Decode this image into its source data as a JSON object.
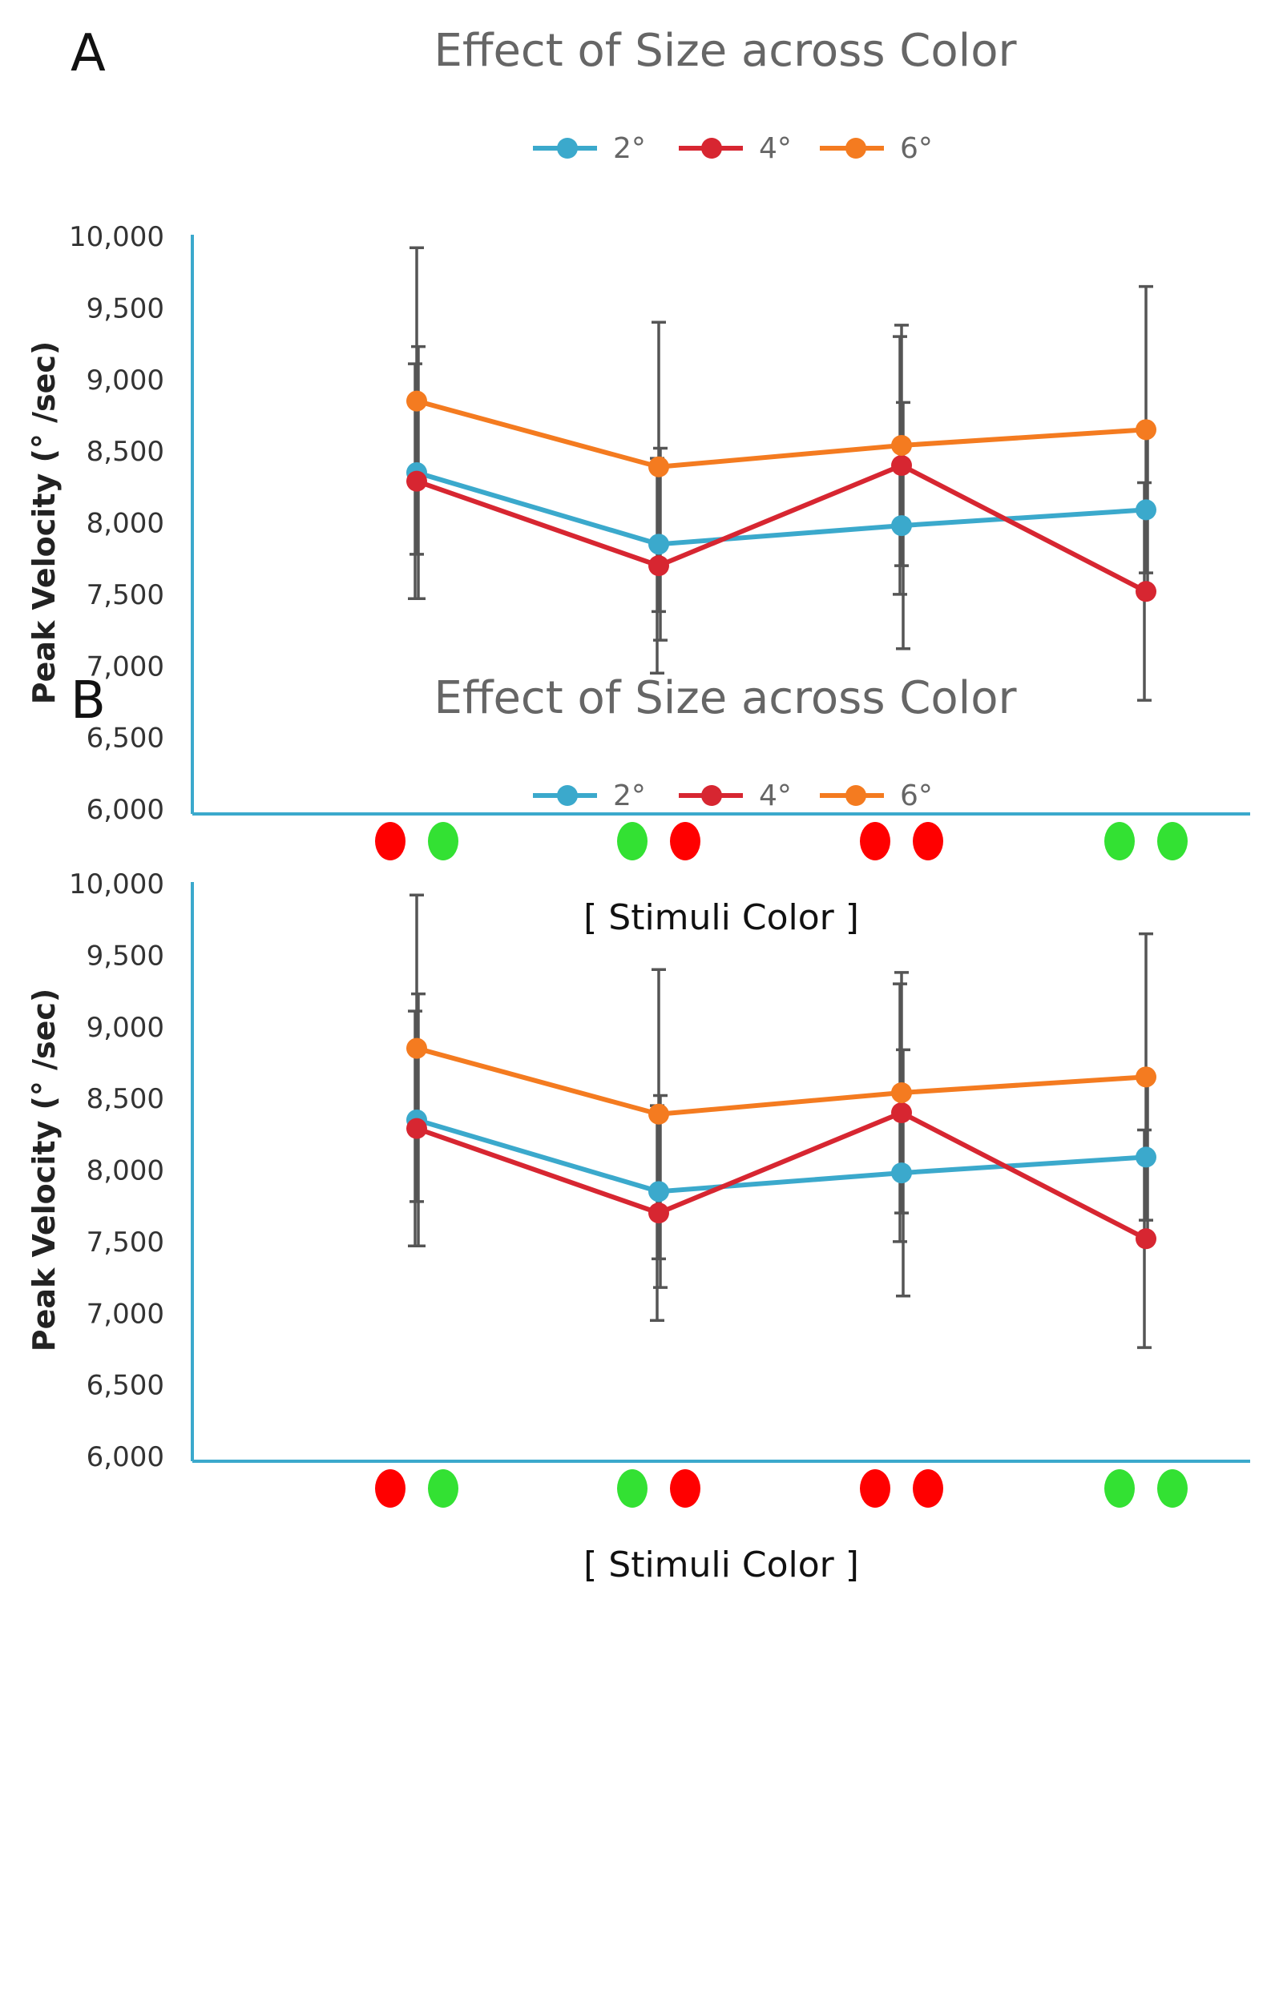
{
  "chart_data": [
    {
      "panel_label": "A",
      "type": "line",
      "title": "Effect of Size across Color",
      "xlabel": "[ Stimuli Color ]",
      "ylabel": "Peak Velocity (° /sec)",
      "ylim": [
        6000,
        10000
      ],
      "yticks": [
        6000,
        6500,
        7000,
        7500,
        8000,
        8500,
        9000,
        9500,
        10000
      ],
      "ytick_labels": [
        "6,000",
        "6,500",
        "7,000",
        "7,500",
        "8,000",
        "8,500",
        "9,000",
        "9,500",
        "10,000"
      ],
      "grid": false,
      "legend_position": "top-center",
      "categories": [
        {
          "name": "red-green",
          "dots": [
            "red",
            "green"
          ]
        },
        {
          "name": "green-red",
          "dots": [
            "green",
            "red"
          ]
        },
        {
          "name": "red-red",
          "dots": [
            "red",
            "red"
          ]
        },
        {
          "name": "green-green",
          "dots": [
            "green",
            "green"
          ]
        }
      ],
      "series": [
        {
          "name": "2°",
          "color": "#3BA9CC",
          "values": [
            8350,
            7850,
            7980,
            8090
          ],
          "error": [
            880,
            670,
            860,
            560
          ]
        },
        {
          "name": "4°",
          "color": "#D72631",
          "values": [
            8290,
            7700,
            8400,
            7520
          ],
          "error": [
            820,
            750,
            900,
            760
          ]
        },
        {
          "name": "6°",
          "color": "#F47B20",
          "values": [
            8850,
            8390,
            8540,
            8650
          ],
          "error": [
            1070,
            1010,
            840,
            1000
          ]
        }
      ]
    },
    {
      "panel_label": "B",
      "type": "line",
      "title": "Effect of Size across Color",
      "xlabel": "[ Stimuli Color ]",
      "ylabel": "Peak Velocity (° /sec)",
      "ylim": [
        6000,
        10000
      ],
      "yticks": [
        6000,
        6500,
        7000,
        7500,
        8000,
        8500,
        9000,
        9500,
        10000
      ],
      "ytick_labels": [
        "6,000",
        "6,500",
        "7,000",
        "7,500",
        "8,000",
        "8,500",
        "9,000",
        "9,500",
        "10,000"
      ],
      "grid": false,
      "legend_position": "top-center",
      "categories": [
        {
          "name": "red-green",
          "dots": [
            "red",
            "green"
          ]
        },
        {
          "name": "green-red",
          "dots": [
            "green",
            "red"
          ]
        },
        {
          "name": "red-red",
          "dots": [
            "red",
            "red"
          ]
        },
        {
          "name": "green-green",
          "dots": [
            "green",
            "green"
          ]
        }
      ],
      "series": [
        {
          "name": "2°",
          "color": "#3BA9CC",
          "values": [
            8350,
            7850,
            7980,
            8090
          ],
          "error": [
            880,
            670,
            860,
            560
          ]
        },
        {
          "name": "4°",
          "color": "#D72631",
          "values": [
            8290,
            7700,
            8400,
            7520
          ],
          "error": [
            820,
            750,
            900,
            760
          ]
        },
        {
          "name": "6°",
          "color": "#F47B20",
          "values": [
            8850,
            8390,
            8540,
            8650
          ],
          "error": [
            1070,
            1010,
            840,
            1000
          ]
        }
      ]
    }
  ],
  "colors": {
    "axis": "#3BA9CC",
    "error_bar": "#555555",
    "dot_red": "#FF0000",
    "dot_green": "#33E133"
  }
}
